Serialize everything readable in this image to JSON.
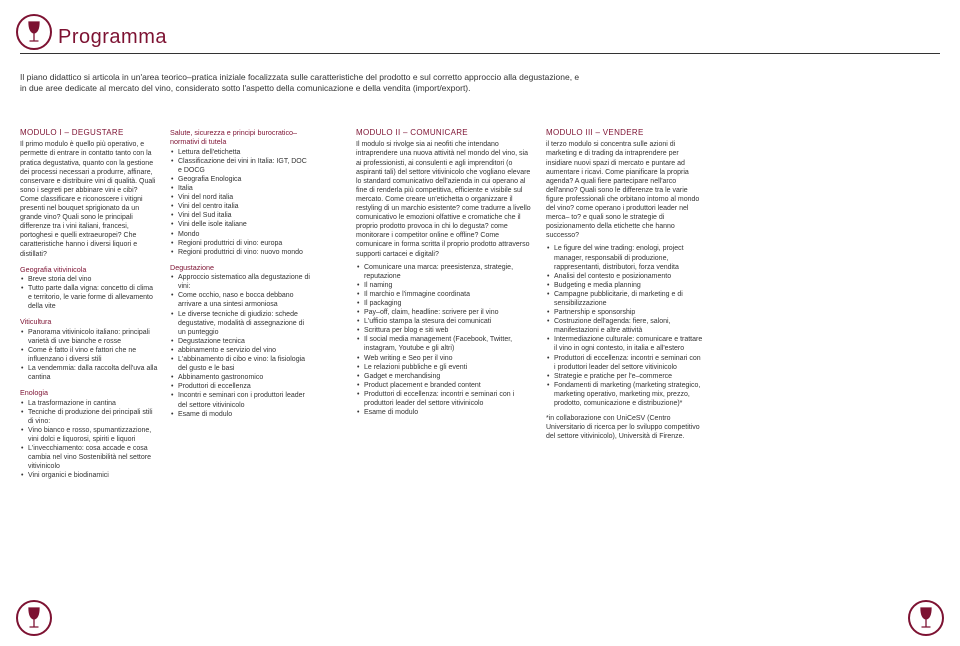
{
  "title": "Programma",
  "icon_color": "#7d1232",
  "intro": "Il piano didattico si articola in un'area teorico–pratica iniziale focalizzata sulle caratteristiche del prodotto e sul corretto approccio alla degustazione, e in due aree dedicate al mercato del vino, considerato sotto l'aspetto della comunicazione e della vendita (import/export).",
  "mod1": {
    "title": "MODULO I – DEGUSTARE",
    "para": "Il primo modulo è quello più operativo, e permette di entrare in contatto tanto con la pratica degustativa, quanto con la gestione dei processi necessari a produrre, affinare, conservare e distribuire vini di qualità. Quali sono i segreti per abbinare vini e cibi? Come classificare e riconoscere i vitigni presenti nel bouquet sprigionato da un grande vino? Quali sono le principali differenze tra i vini italiani, francesi, portoghesi e quelli extraeuropei? Che caratteristiche hanno i diversi liquori e distillati?",
    "geo_title": "Geografia vitivinicola",
    "geo_items": [
      "Breve storia del vino",
      "Tutto parte dalla vigna: concetto di clima e territorio, le varie forme di allevamento della vite"
    ],
    "viti_title": "Viticultura",
    "viti_items": [
      "Panorama vitivinicolo italiano: principali varietà di uve bianche e rosse",
      "Come è fatto il vino e fattori che ne influenzano i diversi stili",
      "La vendemmia: dalla raccolta dell'uva alla cantina"
    ],
    "eno_title": "Enologia",
    "eno_items": [
      "La trasformazione in cantina",
      "Tecniche di produzione dei principali stili di vino:",
      "Vino bianco e rosso, spumantizzazione, vini dolci e liquorosi, spiriti e liquori",
      "L'invecchiamento: cosa accade e cosa cambia nel vino Sostenibilità nel settore vitivinicolo",
      "Vini organici e biodinamici"
    ],
    "salute_title": "Salute, sicurezza e principi burocratico–normativi di tutela",
    "salute_items": [
      "Lettura dell'etichetta",
      "Classificazione dei vini in Italia: IGT, DOC e DOCG",
      "Geografia Enologica",
      "Italia",
      "Vini del nord italia",
      "Vini del centro italia",
      "Vini del Sud italia",
      "Vini delle isole italiane",
      "Mondo",
      "Regioni produttrici di vino: europa",
      "Regioni produttrici di vino: nuovo mondo"
    ],
    "degu_title": "Degustazione",
    "degu_items": [
      "Approccio sistematico alla degustazione di vini:",
      "Come occhio, naso e bocca debbano arrivare a una sintesi armoniosa",
      "Le diverse tecniche di giudizio: schede degustative, modalità di assegnazione di un punteggio",
      "Degustazione tecnica",
      "abbinamento e servizio del vino",
      "L'abbinamento di cibo e vino: la fisiologia del gusto e le basi",
      "Abbinamento gastronomico",
      "Produttori di eccellenza",
      "Incontri e seminari con i produttori leader del settore vitivinicolo",
      "Esame di modulo"
    ]
  },
  "mod2": {
    "title": "MODULO II – COMUNICARE",
    "para": "Il modulo si rivolge sia ai neofiti che intendano intraprendere una nuova attività nel mondo del vino, sia ai professionisti, ai consulenti e agli imprenditori (o aspiranti tali) del settore vitivinicolo che vogliano elevare lo standard comunicativo dell'azienda in cui operano al fine di renderla più competitiva, efficiente e visibile sul mercato. Come creare un'etichetta o organizzare il restyling di un marchio esistente? come tradurre a livello comunicativo le emozioni olfattive e cromatiche che il proprio prodotto provoca in chi lo degusta? come monitorare i competitor online e offline? Come comunicare in forma scritta il proprio prodotto attraverso supporti cartacei e digitali?",
    "items": [
      "Comunicare una marca: preesistenza, strategie, reputazione",
      "Il naming",
      "Il marchio e l'immagine coordinata",
      "Il packaging",
      "Pay–off, claim, headline: scrivere per il vino",
      "L'ufficio stampa la stesura dei comunicati",
      "Scrittura per blog e siti web",
      "Il social media management (Facebook, Twitter, instagram, Youtube e gli altri)",
      "Web writing e Seo per il vino",
      "Le relazioni pubbliche e gli eventi",
      "Gadget e merchandising",
      "Product placement e branded content",
      "Produttori di eccellenza: incontri e seminari con i produttori leader del settore vitivinicolo",
      "Esame di modulo"
    ]
  },
  "mod3": {
    "title": "MODULO III – VENDERE",
    "para": "il terzo modulo si concentra sulle azioni di marketing e di trading da intraprendere per insidiare nuovi spazi di mercato e puntare ad aumentare i ricavi. Come pianificare la propria agenda? A quali fiere partecipare nell'arco dell'anno? Quali sono le differenze tra le varie figure professionali che orbitano intorno al mondo del vino? come operano i produttori leader nel merca– to? e quali sono le strategie di posizionamento della etichette che hanno successo?",
    "items": [
      "Le figure del wine trading: enologi, project manager, responsabili di produzione, rappresentanti, distributori, forza vendita",
      "Analisi del contesto e posizionamento",
      "Budgeting e media planning",
      "Campagne pubblicitarie, di marketing e di sensibilizzazione",
      "Partnership e sponsorship",
      "Costruzione dell'agenda: fiere, saloni, manifestazioni e altre attività",
      "Intermediazione culturale: comunicare e trattare il vino in ogni contesto, in italia e all'estero",
      "Produttori di eccellenza: incontri e seminari con i produttori leader del settore vitivinicolo",
      "Strategie e pratiche per l'e–commerce",
      "Fondamenti di marketing (marketing strategico, marketing operativo, marketing mix, prezzo, prodotto, comunicazione e distribuzione)*"
    ],
    "note": "*in collaborazione con UniCeSV (Centro Universitario di ricerca per lo sviluppo competitivo del settore vitivinicolo), Università di Firenze."
  }
}
